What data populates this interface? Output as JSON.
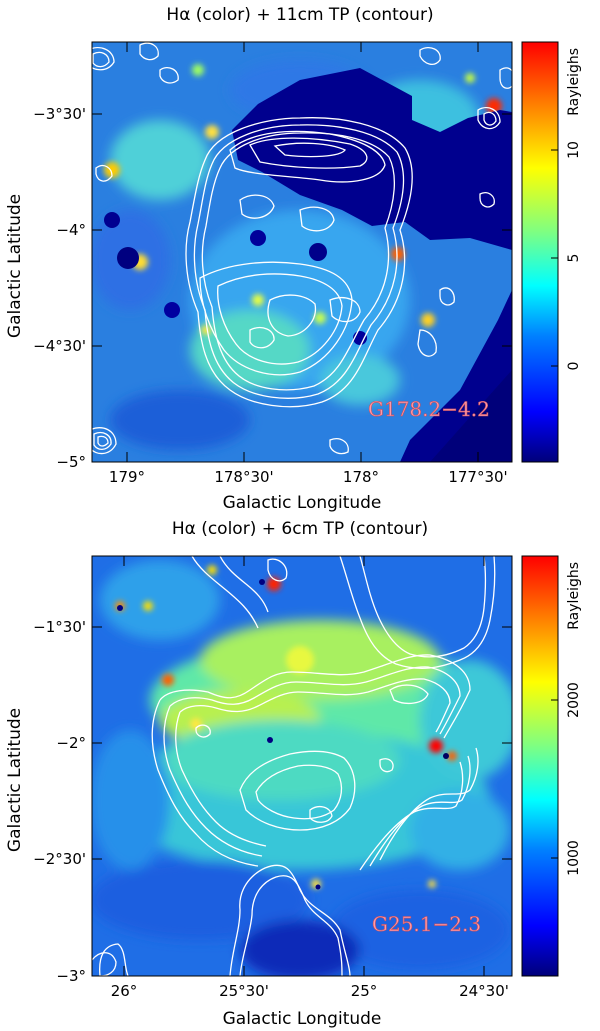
{
  "panels": [
    {
      "title": "Hα (color) + 11cm TP (contour)",
      "xlabel": "Galactic Longitude",
      "ylabel": "Galactic Latitude",
      "colorbar_label": "Rayleighs",
      "source_label": "G178.2−4.2",
      "xticks": [
        "179°",
        "178°30'",
        "178°",
        "177°30'"
      ],
      "yticks": [
        "−3°30'",
        "−4°",
        "−4°30'",
        "−5°"
      ],
      "cbticks": [
        "10",
        "5",
        "0"
      ]
    },
    {
      "title": "Hα (color) + 6cm TP (contour)",
      "xlabel": "Galactic Longitude",
      "ylabel": "Galactic Latitude",
      "colorbar_label": "Rayleighs",
      "source_label": "G25.1−2.3",
      "xticks": [
        "26°",
        "25°30'",
        "25°",
        "24°30'"
      ],
      "yticks": [
        "−1°30'",
        "−2°",
        "−2°30'",
        "−3°"
      ],
      "cbticks": [
        "2000",
        "1000"
      ]
    }
  ],
  "colors": {
    "colormap": [
      "#000080",
      "#0000ff",
      "#0080ff",
      "#00ffff",
      "#80ff80",
      "#ffff00",
      "#ff8000",
      "#ff0000"
    ],
    "contour": "#ffffff"
  }
}
